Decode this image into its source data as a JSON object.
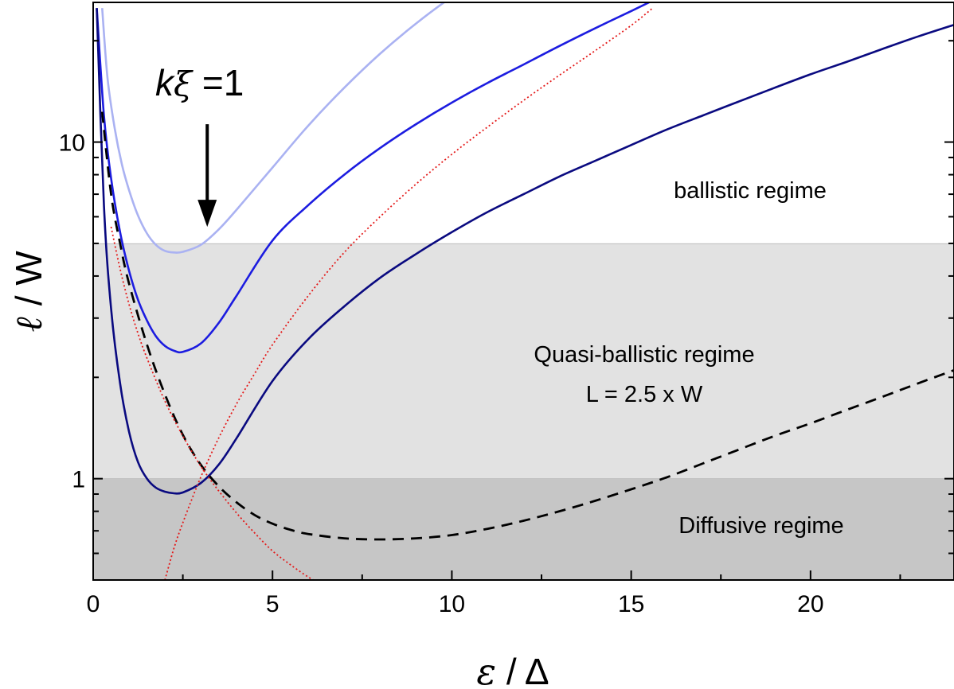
{
  "chart_data": {
    "type": "line",
    "title": "",
    "xlabel_parts": [
      "ε",
      " / ",
      "Δ"
    ],
    "ylabel_parts": [
      "ℓ",
      " / W"
    ],
    "xlim": [
      0,
      24
    ],
    "ylim": [
      0.5,
      26
    ],
    "yscale": "log",
    "x_ticks": [
      0,
      5,
      10,
      15,
      20
    ],
    "x_tick_labels": [
      "0",
      "5",
      "10",
      "15",
      "20"
    ],
    "y_ticks": [
      1,
      10
    ],
    "y_tick_labels": [
      "1",
      "10"
    ],
    "grid": false,
    "legend": "none",
    "regions": [
      {
        "label": "Diffusive regime",
        "ymin": 0.5,
        "ymax": 1,
        "color": "#c6c6c6"
      },
      {
        "label_lines": [
          "Quasi-ballistic regime",
          "L = 2.5 x W"
        ],
        "ymin": 1,
        "ymax": 5,
        "color": "#e2e2e2"
      },
      {
        "label": "ballistic regime",
        "ymin": 5,
        "ymax": 26,
        "color": "#ffffff"
      }
    ],
    "annotation": {
      "parts": [
        "k",
        "ξ",
        " =1"
      ],
      "arrow_x": 3.18,
      "arrow_y_from": 11.3,
      "arrow_y_to": 5.6
    },
    "series": [
      {
        "color": "#aab2f2",
        "style": "solid",
        "x": [
          0.25,
          0.4,
          0.6,
          0.8,
          1.0,
          1.25,
          1.5,
          1.75,
          2.0,
          2.25,
          2.5,
          3.0,
          3.5,
          4.0,
          5.0,
          6.0,
          7.0,
          8.0,
          9.0,
          10.0,
          10.7
        ],
        "y": [
          25,
          15.5,
          11,
          8.6,
          7.2,
          6.05,
          5.35,
          4.95,
          4.75,
          4.7,
          4.72,
          4.95,
          5.5,
          6.3,
          8.4,
          11.2,
          14.5,
          18.3,
          22.5,
          27,
          30
        ]
      },
      {
        "color": "#1c1ce0",
        "style": "solid",
        "x": [
          0.1,
          0.3,
          0.5,
          0.75,
          1.0,
          1.25,
          1.5,
          1.75,
          2.0,
          2.25,
          2.5,
          3.0,
          3.5,
          4.0,
          5.0,
          6.0,
          7.0,
          8.0,
          9.0,
          10.0,
          11.0,
          12.0,
          13.0,
          14.0,
          15.0,
          15.5
        ],
        "y": [
          25,
          12,
          7.8,
          5.4,
          4.15,
          3.4,
          2.95,
          2.65,
          2.48,
          2.4,
          2.38,
          2.52,
          2.9,
          3.5,
          5.1,
          6.5,
          8.0,
          9.6,
          11.3,
          13.1,
          15.0,
          17.0,
          19.3,
          21.8,
          24.5,
          26
        ]
      },
      {
        "color": "#0a0a80",
        "style": "solid",
        "x": [
          0.1,
          0.3,
          0.5,
          0.75,
          1.0,
          1.25,
          1.5,
          1.75,
          2.0,
          2.25,
          2.5,
          3.0,
          3.5,
          4.0,
          5.0,
          6.0,
          7.0,
          8.0,
          9.0,
          10.0,
          11.0,
          12.0,
          13.0,
          14.0,
          15.0,
          16.0,
          17.0,
          18.0,
          19.0,
          20.0,
          21.0,
          22.0,
          23.0,
          24.0
        ],
        "y": [
          25,
          6.5,
          3.2,
          1.92,
          1.38,
          1.12,
          1.0,
          0.94,
          0.915,
          0.905,
          0.91,
          0.97,
          1.1,
          1.32,
          1.95,
          2.6,
          3.25,
          3.95,
          4.65,
          5.4,
          6.2,
          7.0,
          7.9,
          8.8,
          9.8,
          10.9,
          12.0,
          13.2,
          14.5,
          15.9,
          17.3,
          18.9,
          20.6,
          22.3
        ]
      },
      {
        "color": "#000000",
        "style": "dashed",
        "x": [
          0.25,
          0.5,
          0.75,
          1.0,
          1.5,
          2.0,
          2.5,
          3.0,
          3.5,
          4.0,
          4.5,
          5.0,
          5.5,
          6.0,
          7.0,
          8.0,
          9.0,
          10.0,
          11.0,
          12.0,
          13.0,
          14.0,
          15.0,
          16.0,
          17.0,
          18.0,
          19.0,
          20.0,
          21.0,
          22.0,
          23.0,
          24.0
        ],
        "y": [
          12.3,
          7.0,
          5.0,
          3.8,
          2.5,
          1.78,
          1.35,
          1.1,
          0.95,
          0.85,
          0.78,
          0.735,
          0.705,
          0.685,
          0.665,
          0.66,
          0.665,
          0.68,
          0.71,
          0.75,
          0.8,
          0.86,
          0.93,
          1.01,
          1.11,
          1.22,
          1.34,
          1.46,
          1.6,
          1.75,
          1.92,
          2.1
        ]
      },
      {
        "color": "#e41a1a",
        "style": "dotted",
        "x": [
          2.0,
          2.25,
          2.5,
          3.0,
          3.5,
          4.0,
          4.5,
          5.0,
          6.0,
          7.0,
          8.0,
          9.0,
          10.0,
          11.0,
          12.0,
          13.0,
          14.0,
          15.0,
          15.6
        ],
        "y": [
          0.5,
          0.62,
          0.74,
          1.01,
          1.32,
          1.67,
          2.05,
          2.5,
          3.5,
          4.7,
          6.0,
          7.5,
          9.2,
          11.1,
          13.3,
          15.8,
          18.7,
          22.2,
          25
        ]
      },
      {
        "color": "#e41a1a",
        "style": "dotted",
        "x": [
          0.5,
          0.75,
          1.0,
          1.25,
          1.5,
          2.0,
          2.5,
          3.0,
          3.5,
          4.0,
          4.5,
          5.0,
          5.5,
          6.0,
          6.3
        ],
        "y": [
          5.6,
          4.2,
          3.3,
          2.7,
          2.28,
          1.7,
          1.34,
          1.09,
          0.92,
          0.79,
          0.69,
          0.61,
          0.555,
          0.51,
          0.49
        ]
      }
    ]
  }
}
